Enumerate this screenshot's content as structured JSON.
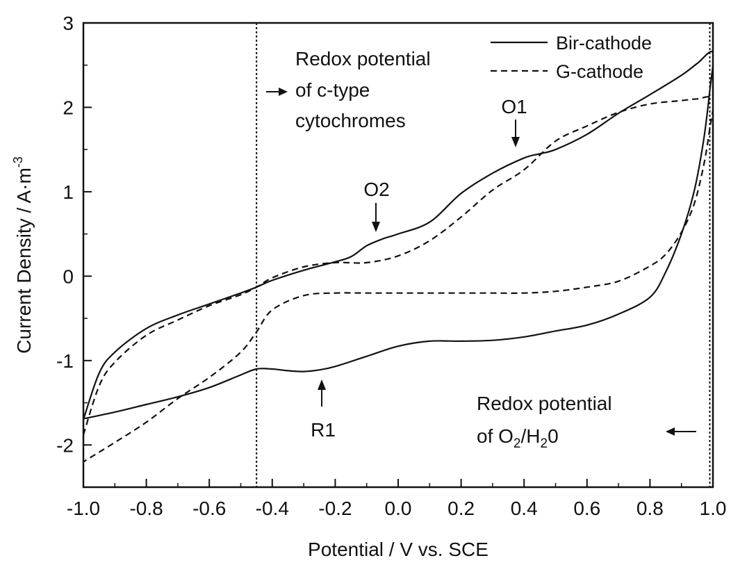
{
  "chart_data": {
    "type": "line",
    "xlabel": "Potential / V vs. SCE",
    "ylabel": "Current Density / A·m",
    "ylabel_superscript": "-3",
    "xlim": [
      -1.0,
      1.0
    ],
    "ylim": [
      -2.5,
      3.0
    ],
    "x_ticks": [
      -1.0,
      -0.8,
      -0.6,
      -0.4,
      -0.2,
      0.0,
      0.2,
      0.4,
      0.6,
      0.8,
      1.0
    ],
    "x_tick_labels": [
      "-1.0",
      "-0.8",
      "-0.6",
      "-0.4",
      "-0.2",
      "0.0",
      "0.2",
      "0.4",
      "0.6",
      "0.8",
      "1.0"
    ],
    "y_ticks": [
      -2,
      -1,
      0,
      1,
      2,
      3
    ],
    "y_tick_labels": [
      "-2",
      "-1",
      "0",
      "1",
      "2",
      "3"
    ],
    "grid": false,
    "legend_position": "top-right",
    "series": [
      {
        "name": "Bir-cathode",
        "style": "solid",
        "color": "#111111",
        "x": [
          -1.0,
          -0.95,
          -0.9,
          -0.8,
          -0.7,
          -0.6,
          -0.5,
          -0.45,
          -0.4,
          -0.3,
          -0.2,
          -0.15,
          -0.1,
          -0.05,
          0.0,
          0.1,
          0.2,
          0.3,
          0.4,
          0.45,
          0.5,
          0.6,
          0.7,
          0.8,
          0.9,
          0.95,
          1.0,
          0.99,
          0.97,
          0.94,
          0.9,
          0.85,
          0.8,
          0.7,
          0.6,
          0.5,
          0.4,
          0.3,
          0.2,
          0.1,
          0.0,
          -0.1,
          -0.2,
          -0.25,
          -0.3,
          -0.35,
          -0.4,
          -0.45,
          -0.5,
          -0.6,
          -0.7,
          -0.8,
          -0.9,
          -1.0
        ],
        "y": [
          -1.7,
          -1.15,
          -0.9,
          -0.62,
          -0.46,
          -0.33,
          -0.2,
          -0.13,
          -0.05,
          0.07,
          0.17,
          0.23,
          0.36,
          0.44,
          0.5,
          0.64,
          0.98,
          1.22,
          1.4,
          1.45,
          1.5,
          1.68,
          1.93,
          2.15,
          2.38,
          2.52,
          2.65,
          2.2,
          1.6,
          1.0,
          0.5,
          0.05,
          -0.25,
          -0.45,
          -0.58,
          -0.65,
          -0.72,
          -0.76,
          -0.77,
          -0.77,
          -0.83,
          -0.95,
          -1.07,
          -1.11,
          -1.13,
          -1.12,
          -1.1,
          -1.1,
          -1.17,
          -1.32,
          -1.43,
          -1.52,
          -1.61,
          -1.69
        ]
      },
      {
        "name": "G-cathode",
        "style": "dashed",
        "color": "#111111",
        "x": [
          -1.0,
          -0.95,
          -0.9,
          -0.8,
          -0.7,
          -0.6,
          -0.5,
          -0.45,
          -0.4,
          -0.3,
          -0.2,
          -0.1,
          0.0,
          0.1,
          0.2,
          0.3,
          0.4,
          0.5,
          0.6,
          0.7,
          0.8,
          0.9,
          0.95,
          1.0,
          0.99,
          0.97,
          0.94,
          0.9,
          0.85,
          0.8,
          0.7,
          0.6,
          0.5,
          0.4,
          0.3,
          0.2,
          0.1,
          0.0,
          -0.1,
          -0.2,
          -0.3,
          -0.4,
          -0.45,
          -0.5,
          -0.6,
          -0.7,
          -0.8,
          -0.9,
          -1.0
        ],
        "y": [
          -1.88,
          -1.3,
          -1.02,
          -0.7,
          -0.52,
          -0.35,
          -0.22,
          -0.13,
          -0.02,
          0.11,
          0.16,
          0.16,
          0.24,
          0.42,
          0.7,
          1.02,
          1.26,
          1.6,
          1.78,
          1.94,
          2.04,
          2.08,
          2.1,
          2.1,
          1.75,
          1.3,
          0.85,
          0.52,
          0.26,
          0.12,
          -0.06,
          -0.13,
          -0.18,
          -0.2,
          -0.2,
          -0.2,
          -0.2,
          -0.2,
          -0.2,
          -0.2,
          -0.23,
          -0.4,
          -0.66,
          -0.9,
          -1.2,
          -1.45,
          -1.73,
          -1.97,
          -2.2
        ]
      }
    ],
    "reference_lines": [
      {
        "x": -0.45,
        "style": "dotted"
      },
      {
        "x": 0.99,
        "style": "dotted"
      }
    ],
    "annotations": [
      {
        "id": "cytochrome",
        "lines": [
          "Redox potential",
          "of c-type",
          "cytochromes"
        ],
        "arrow": "right"
      },
      {
        "id": "o1",
        "label": "O1",
        "x": 0.38,
        "arrow": "down"
      },
      {
        "id": "o2",
        "label": "O2",
        "x": -0.07,
        "arrow": "down"
      },
      {
        "id": "r1",
        "label": "R1",
        "x": -0.24,
        "arrow": "up"
      },
      {
        "id": "o2h2o",
        "line1": "Redox potential",
        "line2_parts": [
          "of O",
          "2",
          "/H",
          "2",
          "0"
        ],
        "arrow": "left"
      }
    ]
  }
}
